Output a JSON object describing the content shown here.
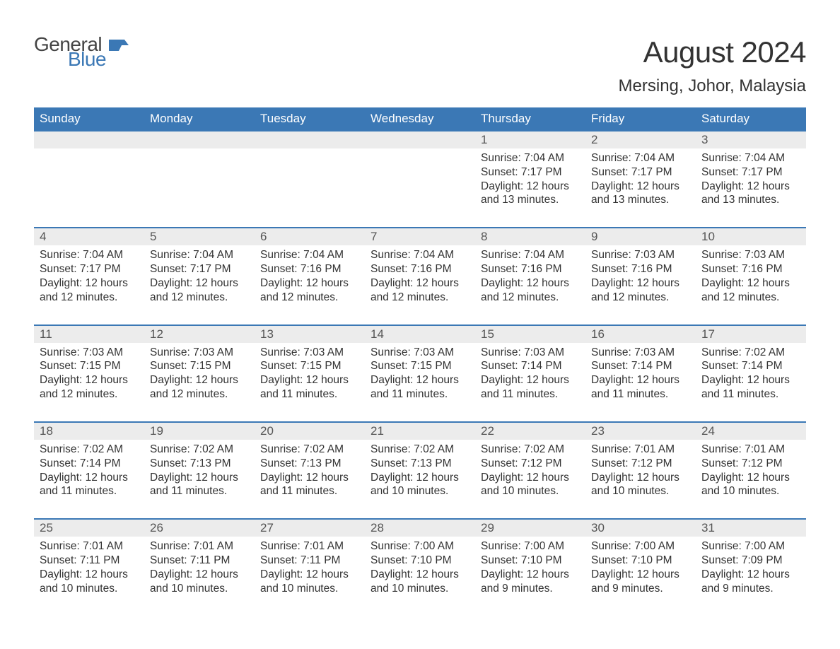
{
  "logo": {
    "word1": "General",
    "word2": "Blue",
    "flag_color": "#3b78b5"
  },
  "title": "August 2024",
  "location": "Mersing, Johor, Malaysia",
  "colors": {
    "header_bg": "#3b78b5",
    "header_text": "#ffffff",
    "row_border": "#3b78b5",
    "daynum_bg": "#ececec",
    "text": "#333333"
  },
  "weekdays": [
    "Sunday",
    "Monday",
    "Tuesday",
    "Wednesday",
    "Thursday",
    "Friday",
    "Saturday"
  ],
  "weeks": [
    {
      "nums": [
        "",
        "",
        "",
        "",
        "1",
        "2",
        "3"
      ],
      "data": [
        null,
        null,
        null,
        null,
        {
          "sunrise": "Sunrise: 7:04 AM",
          "sunset": "Sunset: 7:17 PM",
          "day1": "Daylight: 12 hours",
          "day2": "and 13 minutes."
        },
        {
          "sunrise": "Sunrise: 7:04 AM",
          "sunset": "Sunset: 7:17 PM",
          "day1": "Daylight: 12 hours",
          "day2": "and 13 minutes."
        },
        {
          "sunrise": "Sunrise: 7:04 AM",
          "sunset": "Sunset: 7:17 PM",
          "day1": "Daylight: 12 hours",
          "day2": "and 13 minutes."
        }
      ]
    },
    {
      "nums": [
        "4",
        "5",
        "6",
        "7",
        "8",
        "9",
        "10"
      ],
      "data": [
        {
          "sunrise": "Sunrise: 7:04 AM",
          "sunset": "Sunset: 7:17 PM",
          "day1": "Daylight: 12 hours",
          "day2": "and 12 minutes."
        },
        {
          "sunrise": "Sunrise: 7:04 AM",
          "sunset": "Sunset: 7:17 PM",
          "day1": "Daylight: 12 hours",
          "day2": "and 12 minutes."
        },
        {
          "sunrise": "Sunrise: 7:04 AM",
          "sunset": "Sunset: 7:16 PM",
          "day1": "Daylight: 12 hours",
          "day2": "and 12 minutes."
        },
        {
          "sunrise": "Sunrise: 7:04 AM",
          "sunset": "Sunset: 7:16 PM",
          "day1": "Daylight: 12 hours",
          "day2": "and 12 minutes."
        },
        {
          "sunrise": "Sunrise: 7:04 AM",
          "sunset": "Sunset: 7:16 PM",
          "day1": "Daylight: 12 hours",
          "day2": "and 12 minutes."
        },
        {
          "sunrise": "Sunrise: 7:03 AM",
          "sunset": "Sunset: 7:16 PM",
          "day1": "Daylight: 12 hours",
          "day2": "and 12 minutes."
        },
        {
          "sunrise": "Sunrise: 7:03 AM",
          "sunset": "Sunset: 7:16 PM",
          "day1": "Daylight: 12 hours",
          "day2": "and 12 minutes."
        }
      ]
    },
    {
      "nums": [
        "11",
        "12",
        "13",
        "14",
        "15",
        "16",
        "17"
      ],
      "data": [
        {
          "sunrise": "Sunrise: 7:03 AM",
          "sunset": "Sunset: 7:15 PM",
          "day1": "Daylight: 12 hours",
          "day2": "and 12 minutes."
        },
        {
          "sunrise": "Sunrise: 7:03 AM",
          "sunset": "Sunset: 7:15 PM",
          "day1": "Daylight: 12 hours",
          "day2": "and 12 minutes."
        },
        {
          "sunrise": "Sunrise: 7:03 AM",
          "sunset": "Sunset: 7:15 PM",
          "day1": "Daylight: 12 hours",
          "day2": "and 11 minutes."
        },
        {
          "sunrise": "Sunrise: 7:03 AM",
          "sunset": "Sunset: 7:15 PM",
          "day1": "Daylight: 12 hours",
          "day2": "and 11 minutes."
        },
        {
          "sunrise": "Sunrise: 7:03 AM",
          "sunset": "Sunset: 7:14 PM",
          "day1": "Daylight: 12 hours",
          "day2": "and 11 minutes."
        },
        {
          "sunrise": "Sunrise: 7:03 AM",
          "sunset": "Sunset: 7:14 PM",
          "day1": "Daylight: 12 hours",
          "day2": "and 11 minutes."
        },
        {
          "sunrise": "Sunrise: 7:02 AM",
          "sunset": "Sunset: 7:14 PM",
          "day1": "Daylight: 12 hours",
          "day2": "and 11 minutes."
        }
      ]
    },
    {
      "nums": [
        "18",
        "19",
        "20",
        "21",
        "22",
        "23",
        "24"
      ],
      "data": [
        {
          "sunrise": "Sunrise: 7:02 AM",
          "sunset": "Sunset: 7:14 PM",
          "day1": "Daylight: 12 hours",
          "day2": "and 11 minutes."
        },
        {
          "sunrise": "Sunrise: 7:02 AM",
          "sunset": "Sunset: 7:13 PM",
          "day1": "Daylight: 12 hours",
          "day2": "and 11 minutes."
        },
        {
          "sunrise": "Sunrise: 7:02 AM",
          "sunset": "Sunset: 7:13 PM",
          "day1": "Daylight: 12 hours",
          "day2": "and 11 minutes."
        },
        {
          "sunrise": "Sunrise: 7:02 AM",
          "sunset": "Sunset: 7:13 PM",
          "day1": "Daylight: 12 hours",
          "day2": "and 10 minutes."
        },
        {
          "sunrise": "Sunrise: 7:02 AM",
          "sunset": "Sunset: 7:12 PM",
          "day1": "Daylight: 12 hours",
          "day2": "and 10 minutes."
        },
        {
          "sunrise": "Sunrise: 7:01 AM",
          "sunset": "Sunset: 7:12 PM",
          "day1": "Daylight: 12 hours",
          "day2": "and 10 minutes."
        },
        {
          "sunrise": "Sunrise: 7:01 AM",
          "sunset": "Sunset: 7:12 PM",
          "day1": "Daylight: 12 hours",
          "day2": "and 10 minutes."
        }
      ]
    },
    {
      "nums": [
        "25",
        "26",
        "27",
        "28",
        "29",
        "30",
        "31"
      ],
      "data": [
        {
          "sunrise": "Sunrise: 7:01 AM",
          "sunset": "Sunset: 7:11 PM",
          "day1": "Daylight: 12 hours",
          "day2": "and 10 minutes."
        },
        {
          "sunrise": "Sunrise: 7:01 AM",
          "sunset": "Sunset: 7:11 PM",
          "day1": "Daylight: 12 hours",
          "day2": "and 10 minutes."
        },
        {
          "sunrise": "Sunrise: 7:01 AM",
          "sunset": "Sunset: 7:11 PM",
          "day1": "Daylight: 12 hours",
          "day2": "and 10 minutes."
        },
        {
          "sunrise": "Sunrise: 7:00 AM",
          "sunset": "Sunset: 7:10 PM",
          "day1": "Daylight: 12 hours",
          "day2": "and 10 minutes."
        },
        {
          "sunrise": "Sunrise: 7:00 AM",
          "sunset": "Sunset: 7:10 PM",
          "day1": "Daylight: 12 hours",
          "day2": "and 9 minutes."
        },
        {
          "sunrise": "Sunrise: 7:00 AM",
          "sunset": "Sunset: 7:10 PM",
          "day1": "Daylight: 12 hours",
          "day2": "and 9 minutes."
        },
        {
          "sunrise": "Sunrise: 7:00 AM",
          "sunset": "Sunset: 7:09 PM",
          "day1": "Daylight: 12 hours",
          "day2": "and 9 minutes."
        }
      ]
    }
  ]
}
